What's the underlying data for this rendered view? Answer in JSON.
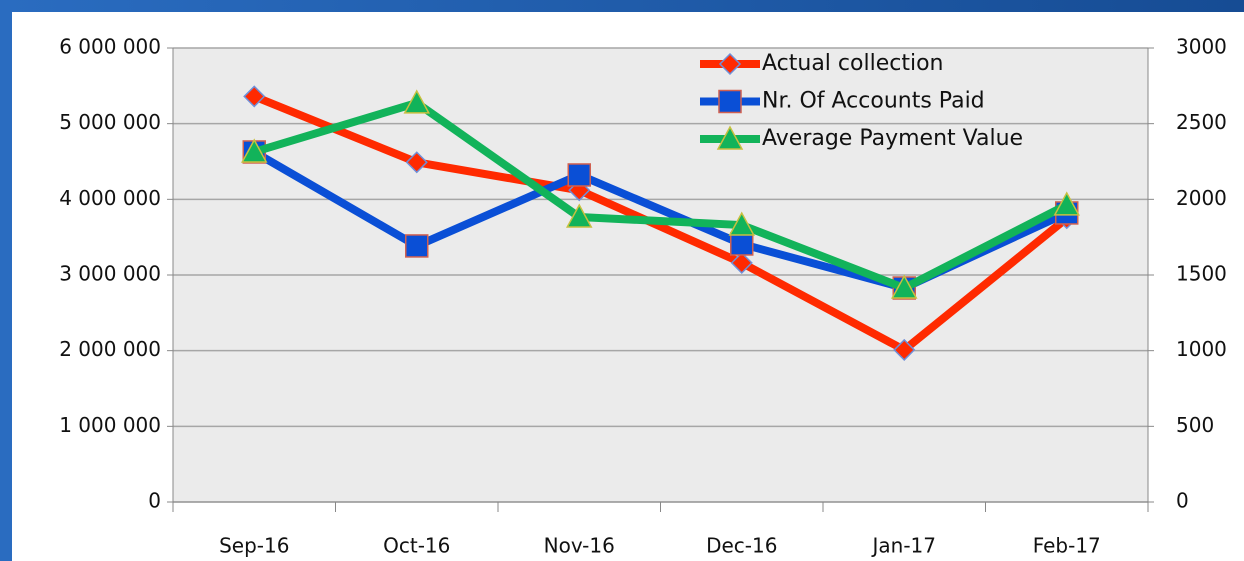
{
  "chart_data": {
    "type": "line",
    "categories": [
      "Sep-16",
      "Oct-16",
      "Nov-16",
      "Dec-16",
      "Jan-17",
      "Feb-17"
    ],
    "series": [
      {
        "name": "Actual collection",
        "color": "#ff2a00",
        "marker": "diamond",
        "values": [
          5360000,
          4490000,
          4120000,
          3160000,
          2010000,
          3750000
        ]
      },
      {
        "name": "Nr. Of Accounts Paid",
        "color": "#0a4fd6",
        "marker": "square",
        "axis": "y2",
        "values": [
          2313,
          1692,
          2161,
          1705,
          1414,
          1910
        ]
      },
      {
        "name": "Average Payment Value",
        "color": "#12b35a",
        "marker": "triangle",
        "axis": "y2",
        "values": [
          2313,
          2637,
          1883,
          1830,
          1414,
          1963
        ]
      }
    ],
    "ylim": [
      0,
      6000000
    ],
    "yticks": [
      0,
      {
        "value": 1000000,
        "label": "1 000 000"
      },
      {
        "value": 2000000,
        "label": "2 000 000"
      },
      {
        "value": 3000000,
        "label": "3 000 000"
      },
      {
        "value": 4000000,
        "label": "4 000 000"
      },
      {
        "value": 5000000,
        "label": "5 000 000"
      },
      {
        "value": 6000000,
        "label": "6 000 000"
      }
    ],
    "y2lim": [
      0,
      3000
    ],
    "y2ticks": [
      0,
      500,
      1000,
      1500,
      2000,
      2500,
      3000
    ],
    "grid": true,
    "legend": "upper right"
  }
}
